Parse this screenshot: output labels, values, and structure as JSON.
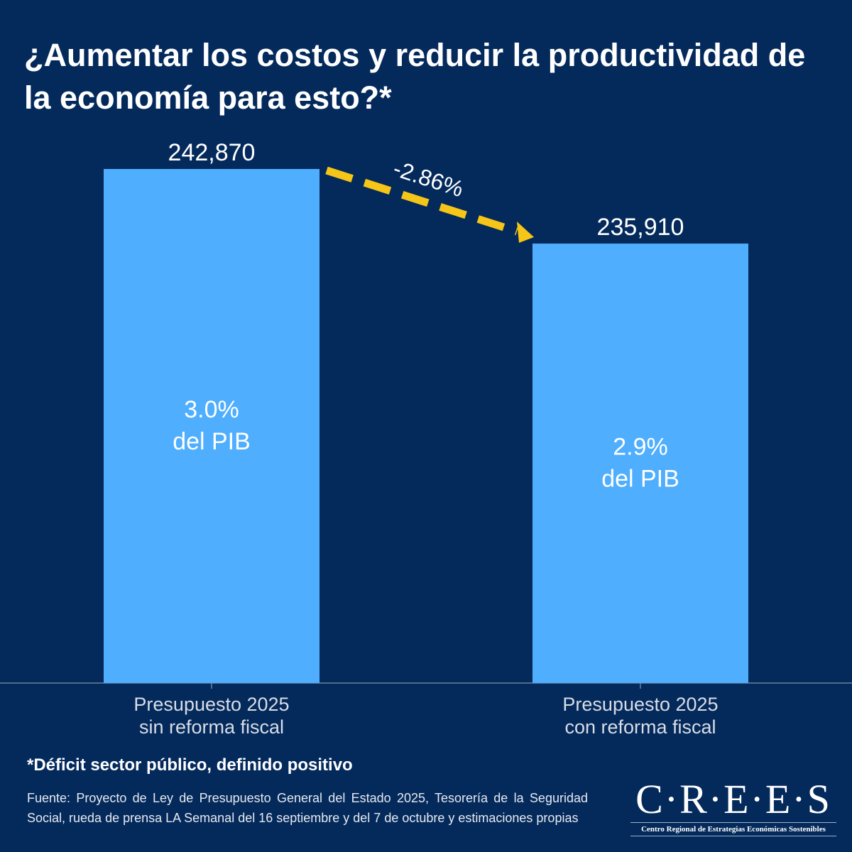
{
  "title": "¿Aumentar los costos y reducir la productividad de la economía para esto?*",
  "chart_data": {
    "type": "bar",
    "categories": [
      "Presupuesto 2025\nsin reforma fiscal",
      "Presupuesto 2025\ncon reforma fiscal"
    ],
    "values": [
      242870,
      235910
    ],
    "value_labels": [
      "242,870",
      "235,910"
    ],
    "inner_labels": [
      [
        "3.0%",
        "del PIB"
      ],
      [
        "2.9%",
        "del PIB"
      ]
    ],
    "change_annotation": "-2.86%",
    "ylim": [
      194900,
      250000
    ],
    "xlabel": "",
    "ylabel": "",
    "grid": false,
    "colors": {
      "bar": "#4faefd",
      "arrow": "#f5c518",
      "background": "#042a5c"
    }
  },
  "note": "*Déficit sector público, definido positivo",
  "source": "Fuente: Proyecto de Ley de Presupuesto General del Estado 2025, Tesorería de la Seguridad Social, rueda de prensa LA Semanal del 16 septiembre y del 7 de octubre y estimaciones propias",
  "logo": {
    "word": "C·R·E·E·S",
    "subtitle": "Centro Regional de Estrategias Económicas Sostenibles"
  }
}
